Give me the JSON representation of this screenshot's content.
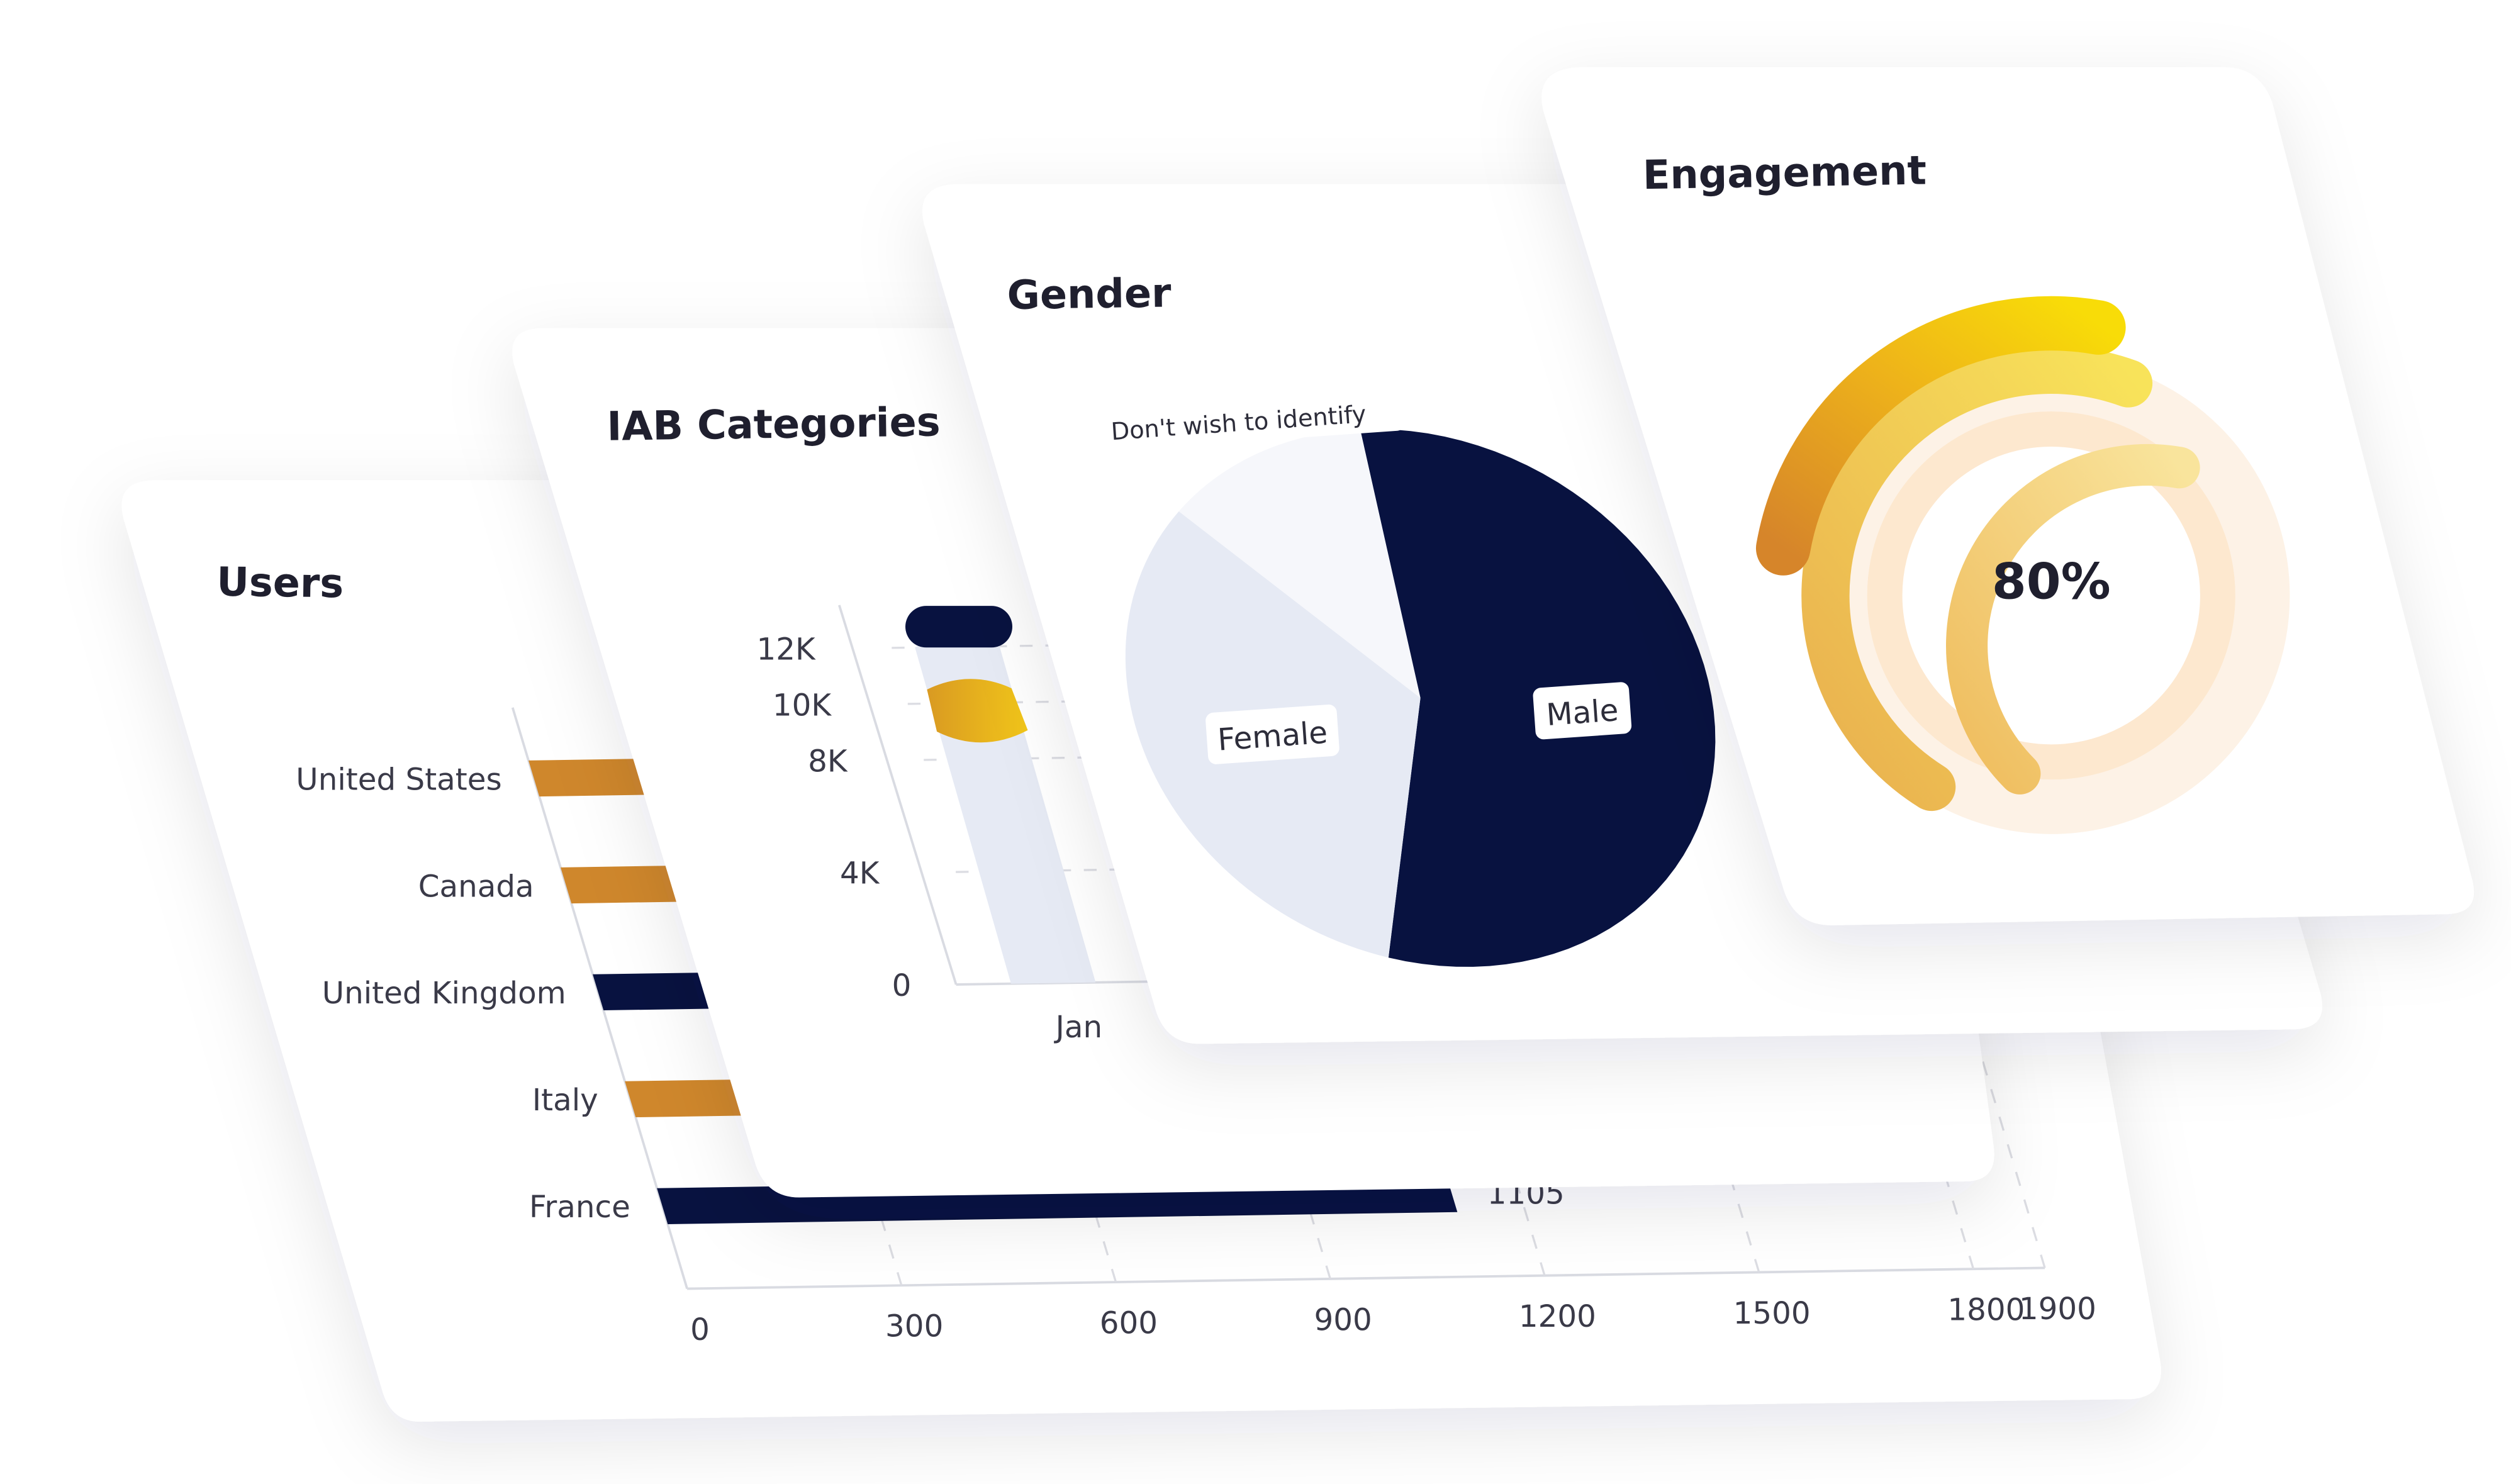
{
  "colors": {
    "navy": "#081240",
    "orange": "#cf872c",
    "yellow": "#f5d20c",
    "light_blue": "#e6eaf4",
    "card": "#ffffff"
  },
  "chart_data": [
    {
      "type": "bar",
      "orientation": "horizontal",
      "title": "Users",
      "categories": [
        "United States",
        "Canada",
        "United Kingdom",
        "Italy",
        "France"
      ],
      "values": [
        300,
        300,
        300,
        300,
        1105
      ],
      "bar_colors": [
        "orange",
        "orange",
        "navy",
        "orange",
        "navy"
      ],
      "data_labels": [
        "",
        "",
        "",
        "",
        "1105"
      ],
      "x_ticks": [
        "0",
        "300",
        "600",
        "900",
        "1200",
        "1500",
        "1800",
        "1900"
      ],
      "xlim": [
        0,
        1900
      ],
      "grid": "vertical dashed"
    },
    {
      "type": "bar",
      "title": "IAB Categories",
      "categories": [
        "Jan"
      ],
      "values": [
        10500
      ],
      "range_max": 12000,
      "y_ticks": [
        "0",
        "4K",
        "8K",
        "10K",
        "12K"
      ],
      "ylim": [
        0,
        12000
      ],
      "grid": "horizontal dashed"
    },
    {
      "type": "pie",
      "title": "Gender",
      "labels": [
        "Male",
        "Female",
        "Don't wish to identify"
      ],
      "values": [
        55,
        33,
        12
      ],
      "slice_colors": [
        "navy",
        "light_blue",
        "#f6f7fb"
      ]
    },
    {
      "type": "radial",
      "title": "Engagement",
      "center_label": "80%",
      "value": 80
    }
  ]
}
